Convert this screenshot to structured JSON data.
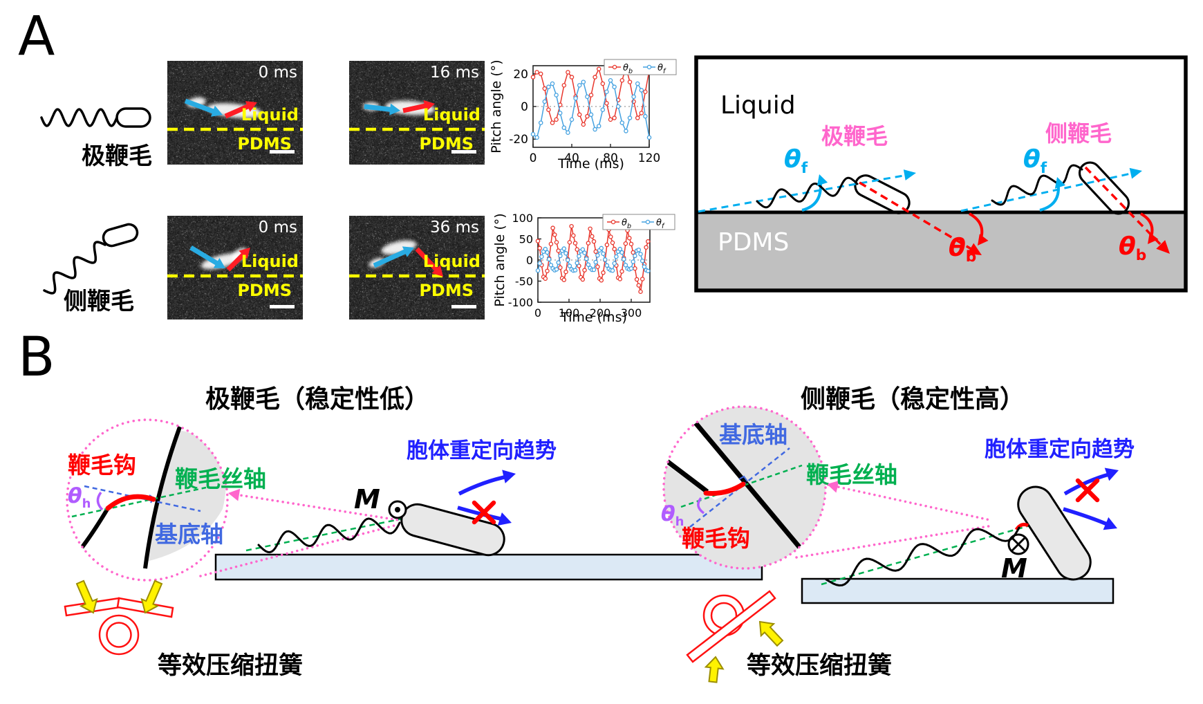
{
  "colors": {
    "pink": "#FF66CC",
    "green": "#00B050",
    "royal_blue": "#4169E1",
    "deep_blue": "#2020FF",
    "purple": "#B05CFF",
    "cyan": "#00AEEF",
    "red": "#FF0000",
    "chart_red": "#E8352B",
    "chart_blue": "#44A1E0",
    "yellow": "#FFFF00",
    "pdms_gray": "#C0C0C0",
    "surface_blue": "#DCE9F5"
  },
  "panelA": {
    "label": "A",
    "polar_row": {
      "schematic_label": "极鞭毛",
      "frames": [
        {
          "time": "0 ms",
          "liquid": "Liquid",
          "pdms": "PDMS"
        },
        {
          "time": "16 ms",
          "liquid": "Liquid",
          "pdms": "PDMS"
        }
      ]
    },
    "lateral_row": {
      "schematic_label": "侧鞭毛",
      "frames": [
        {
          "time": "0 ms",
          "liquid": "Liquid",
          "pdms": "PDMS"
        },
        {
          "time": "36 ms",
          "liquid": "Liquid",
          "pdms": "PDMS"
        }
      ]
    },
    "schematic": {
      "liquid": "Liquid",
      "pdms": "PDMS",
      "polar_label": "极鞭毛",
      "lateral_label": "侧鞭毛",
      "theta_f_sym": "θ",
      "theta_f_sub": "f",
      "theta_b_sym": "θ",
      "theta_b_sub": "b"
    }
  },
  "chart_data": [
    {
      "type": "line",
      "title": "",
      "xlabel": "Time (ms)",
      "ylabel": "Pitch angle (°)",
      "xlim": [
        0,
        120
      ],
      "ylim": [
        -25,
        25
      ],
      "xticks": [
        0,
        40,
        80,
        120
      ],
      "yticks": [
        -20,
        0,
        20
      ],
      "x_start": 0,
      "x_step": 4,
      "zero_line": true,
      "legend_position": "top-right",
      "grid": false,
      "series": [
        {
          "name": "θb",
          "name_sym": "θ",
          "name_sub": "b",
          "color": "#E8352B",
          "values": [
            18,
            21,
            20,
            11,
            -2,
            -10,
            -8,
            1,
            13,
            21,
            18,
            6,
            -5,
            -11,
            -6,
            7,
            18,
            23,
            14,
            2,
            -8,
            -7,
            4,
            16,
            24,
            15,
            3,
            -7,
            -4,
            9,
            22
          ]
        },
        {
          "name": "θf",
          "name_sym": "θ",
          "name_sub": "f",
          "color": "#44A1E0",
          "values": [
            -17,
            -19,
            -10,
            3,
            12,
            14,
            7,
            -4,
            -13,
            -16,
            -8,
            5,
            13,
            15,
            6,
            -5,
            -14,
            -12,
            -2,
            9,
            16,
            12,
            0,
            -10,
            -15,
            -7,
            6,
            14,
            10,
            -6,
            -19
          ]
        }
      ]
    },
    {
      "type": "line",
      "title": "",
      "xlabel": "Time (ms)",
      "ylabel": "Pitch angle (°)",
      "xlim": [
        0,
        360
      ],
      "ylim": [
        -100,
        100
      ],
      "xticks": [
        0,
        100,
        200,
        300
      ],
      "yticks": [
        -100,
        -50,
        0,
        50,
        100
      ],
      "x_start": 0,
      "x_step": 6,
      "zero_line": true,
      "legend_position": "top-right",
      "grid": false,
      "series": [
        {
          "name": "θb",
          "name_sym": "θ",
          "name_sub": "b",
          "color": "#E8352B",
          "values": [
            45,
            28,
            -12,
            -40,
            -44,
            -26,
            4,
            38,
            76,
            60,
            42,
            22,
            -18,
            -43,
            -47,
            -28,
            2,
            42,
            80,
            58,
            40,
            25,
            -14,
            -41,
            -46,
            -24,
            6,
            40,
            74,
            56,
            44,
            20,
            -16,
            -44,
            -48,
            -30,
            0,
            36,
            72,
            55,
            41,
            26,
            -13,
            -42,
            -45,
            -27,
            5,
            39,
            70,
            52,
            38,
            18,
            -20,
            -46,
            -60,
            -75,
            -45,
            -10,
            30,
            44
          ]
        },
        {
          "name": "θf",
          "name_sym": "θ",
          "name_sub": "f",
          "color": "#44A1E0",
          "values": [
            -25,
            -8,
            8,
            20,
            26,
            18,
            2,
            -12,
            -20,
            -24,
            -22,
            -6,
            10,
            22,
            27,
            16,
            0,
            -14,
            -22,
            -25,
            -24,
            -7,
            9,
            21,
            25,
            17,
            3,
            -11,
            -19,
            -23,
            -23,
            -5,
            11,
            23,
            28,
            15,
            1,
            -13,
            -21,
            -24,
            -25,
            -8,
            8,
            20,
            26,
            18,
            2,
            -12,
            -20,
            -22,
            -20,
            -4,
            10,
            22,
            24,
            14,
            -2,
            -16,
            -24,
            -26
          ]
        }
      ]
    }
  ],
  "panelB": {
    "label": "B",
    "left": {
      "title": "极鞭毛（稳定性低）",
      "hook_label": "鞭毛钩",
      "filament_axis_label": "鞭毛丝轴",
      "basal_axis_label": "基底轴",
      "theta_h_sym": "θ",
      "theta_h_sub": "h",
      "torque_symbol": "M",
      "reorientation_label": "胞体重定向趋势",
      "spring_label": "等效压缩扭簧"
    },
    "right": {
      "title": "侧鞭毛（稳定性高）",
      "hook_label": "鞭毛钩",
      "filament_axis_label": "鞭毛丝轴",
      "basal_axis_label": "基底轴",
      "theta_h_sym": "θ",
      "theta_h_sub": "h",
      "torque_symbol": "M",
      "reorientation_label": "胞体重定向趋势",
      "spring_label": "等效压缩扭簧"
    }
  }
}
